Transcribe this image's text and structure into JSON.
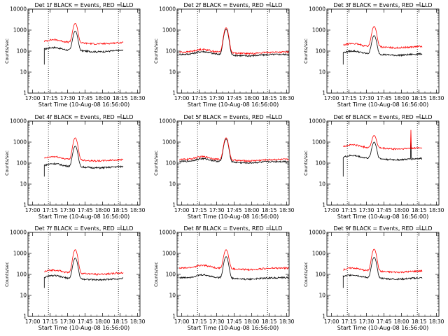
{
  "window": {
    "title": ""
  },
  "colors": {
    "events": "#000000",
    "lld": "#ff0000",
    "axis": "#000000"
  },
  "chart_data": [
    {
      "type": "line",
      "title": "Det 1f BLACK = Events, RED = LLD",
      "xlabel": "Start Time (10-Aug-08 16:56:00)",
      "ylabel": "Counts/sec",
      "yscale": "log",
      "xticks": [
        "17:00",
        "17:15",
        "17:30",
        "17:45",
        "18:00",
        "18:15",
        "18:30"
      ],
      "yticks": [
        "1",
        "10",
        "100",
        "1000",
        "10000"
      ],
      "xlim_minutes": [
        0,
        96
      ],
      "ylim": [
        1,
        10000
      ],
      "vlines_minutes": [
        17.5,
        77.5
      ],
      "data_range_minutes": [
        14,
        82
      ],
      "series": [
        {
          "name": "Events",
          "base": 110,
          "peak": 900,
          "peak_at_minutes": 40.5
        },
        {
          "name": "LLD",
          "base": 260,
          "peak": 2100,
          "peak_at_minutes": 40.5
        }
      ]
    },
    {
      "type": "line",
      "title": "Det 2f BLACK = Events, RED = LLD",
      "xlabel": "Start Time (10-Aug-08 16:56:00)",
      "ylabel": "Counts/sec",
      "yscale": "log",
      "xticks": [
        "17:00",
        "17:15",
        "17:30",
        "17:45",
        "18:00",
        "18:15",
        "18:30"
      ],
      "yticks": [
        "1",
        "10",
        "100",
        "1000",
        "10000"
      ],
      "xlim_minutes": [
        0,
        96
      ],
      "ylim": [
        1,
        10000
      ],
      "vlines_minutes": [
        17.5,
        77.5
      ],
      "data_range_minutes": [
        2,
        96
      ],
      "series": [
        {
          "name": "Events",
          "base": 70,
          "peak": 1100,
          "peak_at_minutes": 42
        },
        {
          "name": "LLD",
          "base": 90,
          "peak": 1300,
          "peak_at_minutes": 42
        }
      ]
    },
    {
      "type": "line",
      "title": "Det 3f BLACK = Events, RED = LLD",
      "xlabel": "Start Time (10-Aug-08 16:56:00)",
      "ylabel": "Counts/sec",
      "yscale": "log",
      "xticks": [
        "17:00",
        "17:15",
        "17:30",
        "17:45",
        "18:00",
        "18:15",
        "18:30"
      ],
      "yticks": [
        "1",
        "10",
        "100",
        "1000",
        "10000"
      ],
      "xlim_minutes": [
        0,
        96
      ],
      "ylim": [
        1,
        10000
      ],
      "vlines_minutes": [
        17.5,
        77.5
      ],
      "data_range_minutes": [
        14,
        82
      ],
      "series": [
        {
          "name": "Events",
          "base": 75,
          "peak": 550,
          "peak_at_minutes": 40.5
        },
        {
          "name": "LLD",
          "base": 170,
          "peak": 1500,
          "peak_at_minutes": 40.5
        }
      ]
    },
    {
      "type": "line",
      "title": "Det 4f BLACK = Events, RED = LLD",
      "xlabel": "Start Time (10-Aug-08 16:56:00)",
      "ylabel": "Counts/sec",
      "yscale": "log",
      "xticks": [
        "17:00",
        "17:15",
        "17:30",
        "17:45",
        "18:00",
        "18:15",
        "18:30"
      ],
      "yticks": [
        "1",
        "10",
        "100",
        "1000",
        "10000"
      ],
      "xlim_minutes": [
        0,
        96
      ],
      "ylim": [
        1,
        10000
      ],
      "vlines_minutes": [
        17.5,
        77.5
      ],
      "data_range_minutes": [
        14,
        82
      ],
      "series": [
        {
          "name": "Events",
          "base": 70,
          "peak": 650,
          "peak_at_minutes": 40.5
        },
        {
          "name": "LLD",
          "base": 150,
          "peak": 1600,
          "peak_at_minutes": 40.5
        }
      ]
    },
    {
      "type": "line",
      "title": "Det 5f BLACK = Events, RED = LLD",
      "xlabel": "Start Time (10-Aug-08 16:56:00)",
      "ylabel": "Counts/sec",
      "yscale": "log",
      "xticks": [
        "17:00",
        "17:15",
        "17:30",
        "17:45",
        "18:00",
        "18:15",
        "18:30"
      ],
      "yticks": [
        "1",
        "10",
        "100",
        "1000",
        "10000"
      ],
      "xlim_minutes": [
        0,
        96
      ],
      "ylim": [
        1,
        10000
      ],
      "vlines_minutes": [
        17.5,
        77.5
      ],
      "data_range_minutes": [
        2,
        96
      ],
      "series": [
        {
          "name": "Events",
          "base": 120,
          "peak": 1400,
          "peak_at_minutes": 42
        },
        {
          "name": "LLD",
          "base": 150,
          "peak": 1600,
          "peak_at_minutes": 42
        }
      ]
    },
    {
      "type": "line",
      "title": "Det 6f BLACK = Events, RED = LLD",
      "xlabel": "Start Time (10-Aug-08 16:56:00)",
      "ylabel": "Counts/sec",
      "yscale": "log",
      "xticks": [
        "17:00",
        "17:15",
        "17:30",
        "17:45",
        "18:00",
        "18:15",
        "18:30"
      ],
      "yticks": [
        "1",
        "10",
        "100",
        "1000",
        "10000"
      ],
      "xlim_minutes": [
        0,
        96
      ],
      "ylim": [
        1,
        10000
      ],
      "vlines_minutes": [
        17.5,
        77.5
      ],
      "data_range_minutes": [
        14,
        82
      ],
      "series": [
        {
          "name": "Events",
          "base": 170,
          "peak": 1000,
          "peak_at_minutes": 40.5,
          "spike_at_minutes": 72,
          "spike": 1200
        },
        {
          "name": "LLD",
          "base": 550,
          "peak": 2100,
          "peak_at_minutes": 40.5,
          "spike_at_minutes": 72,
          "spike": 3800
        }
      ]
    },
    {
      "type": "line",
      "title": "Det 7f BLACK = Events, RED = LLD",
      "xlabel": "Start Time (10-Aug-08 16:56:00)",
      "ylabel": "Counts/sec",
      "yscale": "log",
      "xticks": [
        "17:00",
        "17:15",
        "17:30",
        "17:45",
        "18:00",
        "18:15",
        "18:30"
      ],
      "yticks": [
        "1",
        "10",
        "100",
        "1000",
        "10000"
      ],
      "xlim_minutes": [
        0,
        96
      ],
      "ylim": [
        1,
        10000
      ],
      "vlines_minutes": [
        17.5,
        77.5
      ],
      "data_range_minutes": [
        14,
        82
      ],
      "series": [
        {
          "name": "Events",
          "base": 65,
          "peak": 600,
          "peak_at_minutes": 40.5
        },
        {
          "name": "LLD",
          "base": 120,
          "peak": 1500,
          "peak_at_minutes": 40.5
        }
      ]
    },
    {
      "type": "line",
      "title": "Det 8f BLACK = Events, RED = LLD",
      "xlabel": "Start Time (10-Aug-08 16:56:00)",
      "ylabel": "Counts/sec",
      "yscale": "log",
      "xticks": [
        "17:00",
        "17:15",
        "17:30",
        "17:45",
        "18:00",
        "18:15",
        "18:30"
      ],
      "yticks": [
        "1",
        "10",
        "100",
        "1000",
        "10000"
      ],
      "xlim_minutes": [
        0,
        96
      ],
      "ylim": [
        1,
        10000
      ],
      "vlines_minutes": [
        17.5,
        77.5
      ],
      "data_range_minutes": [
        2,
        96
      ],
      "series": [
        {
          "name": "Events",
          "base": 70,
          "peak": 700,
          "peak_at_minutes": 42
        },
        {
          "name": "LLD",
          "base": 200,
          "peak": 1500,
          "peak_at_minutes": 42
        }
      ]
    },
    {
      "type": "line",
      "title": "Det 9f BLACK = Events, RED = LLD",
      "xlabel": "Start Time (10-Aug-08 16:56:00)",
      "ylabel": "Counts/sec",
      "yscale": "log",
      "xticks": [
        "17:00",
        "17:15",
        "17:30",
        "17:45",
        "18:00",
        "18:15",
        "18:30"
      ],
      "yticks": [
        "1",
        "10",
        "100",
        "1000",
        "10000"
      ],
      "xlim_minutes": [
        0,
        96
      ],
      "ylim": [
        1,
        10000
      ],
      "vlines_minutes": [
        17.5,
        77.5
      ],
      "data_range_minutes": [
        14,
        82
      ],
      "series": [
        {
          "name": "Events",
          "base": 70,
          "peak": 650,
          "peak_at_minutes": 40.5
        },
        {
          "name": "LLD",
          "base": 150,
          "peak": 1600,
          "peak_at_minutes": 40.5
        }
      ]
    }
  ]
}
